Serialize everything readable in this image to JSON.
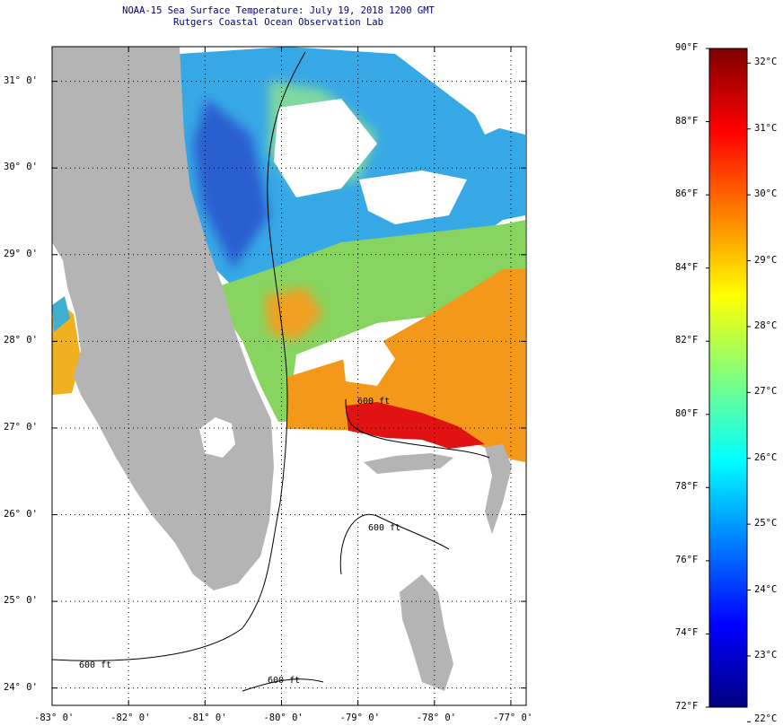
{
  "title": {
    "line1": "NOAA-15 Sea Surface Temperature:  July 19, 2018 1200 GMT",
    "line2": "Rutgers Coastal Ocean Observation Lab"
  },
  "map": {
    "lat_labels": [
      "31° 0'",
      "30° 0'",
      "29° 0'",
      "28° 0'",
      "27° 0'",
      "26° 0'",
      "25° 0'",
      "24° 0'"
    ],
    "lon_labels": [
      "-83° 0'",
      "-82° 0'",
      "-81° 0'",
      "-80° 0'",
      "-79° 0'",
      "-78° 0'",
      "-77° 0'"
    ],
    "lat_values": [
      31,
      30,
      29,
      28,
      27,
      26,
      25,
      24
    ],
    "lon_values": [
      -83,
      -82,
      -81,
      -80,
      -79,
      -78,
      -77
    ],
    "lat_range": [
      23.8,
      31.4
    ],
    "lon_range": [
      -83,
      -76.8
    ],
    "isobath_labels": [
      "600 ft",
      "600 ft",
      "600 ft",
      "600 ft"
    ],
    "colors": {
      "land": "#b4b4b4",
      "grid": "#000000",
      "title": "#000080"
    }
  },
  "colorbar": {
    "f_labels": [
      "90°F",
      "88°F",
      "86°F",
      "84°F",
      "82°F",
      "80°F",
      "78°F",
      "76°F",
      "74°F",
      "72°F"
    ],
    "c_labels": [
      "32°C",
      "31°C",
      "30°C",
      "29°C",
      "28°C",
      "27°C",
      "26°C",
      "25°C",
      "24°C",
      "23°C",
      "22°C"
    ],
    "f_values": [
      90,
      88,
      86,
      84,
      82,
      80,
      78,
      76,
      74,
      72
    ],
    "c_values": [
      32,
      31,
      30,
      29,
      28,
      27,
      26,
      25,
      24,
      23,
      22
    ],
    "range_f": [
      72,
      90
    ],
    "colormap": [
      "#00007f",
      "#0000ff",
      "#007fff",
      "#00ffff",
      "#7fff7f",
      "#ffff00",
      "#ff7f00",
      "#ff0000",
      "#7f0000"
    ]
  }
}
